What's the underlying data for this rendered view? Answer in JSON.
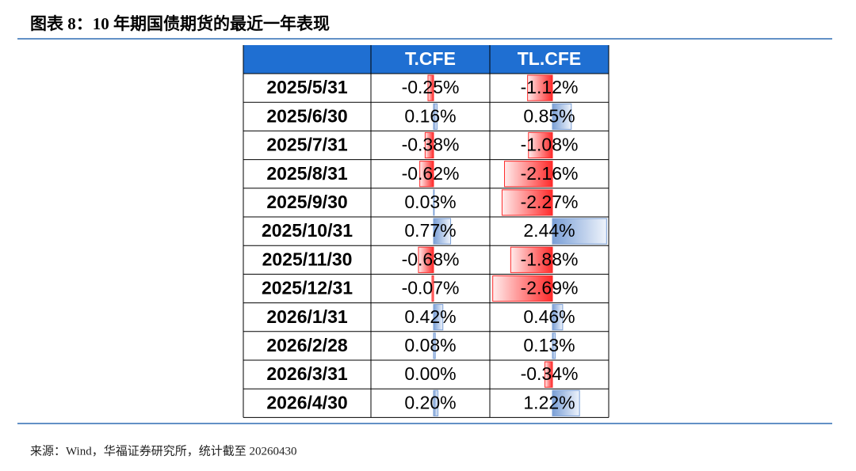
{
  "header": {
    "title": "图表 8：10 年期国债期货的最近一年表现"
  },
  "table": {
    "dates": [
      "2025/5/31",
      "2025/6/30",
      "2025/7/31",
      "2025/8/31",
      "2025/9/30",
      "2025/10/31",
      "2025/11/30",
      "2025/12/31",
      "2026/1/31",
      "2026/2/28",
      "2026/3/31",
      "2026/4/30"
    ],
    "columns": [
      {
        "name": "T.CFE",
        "values": [
          -0.25,
          0.16,
          -0.38,
          -0.62,
          0.03,
          0.77,
          -0.68,
          -0.07,
          0.42,
          0.08,
          0.0,
          0.2
        ],
        "value_labels": [
          "-0.25%",
          "0.16%",
          "-0.38%",
          "-0.62%",
          "0.03%",
          "0.77%",
          "-0.68%",
          "-0.07%",
          "0.42%",
          "0.08%",
          "0.00%",
          "0.20%"
        ]
      },
      {
        "name": "TL.CFE",
        "values": [
          -1.12,
          0.85,
          -1.08,
          -2.16,
          -2.27,
          2.44,
          -1.88,
          -2.69,
          0.46,
          0.13,
          -0.34,
          1.22
        ],
        "value_labels": [
          "-1.12%",
          "0.85%",
          "-1.08%",
          "-2.16%",
          "-2.27%",
          "2.44%",
          "-1.88%",
          "-2.69%",
          "0.46%",
          "0.13%",
          "-0.34%",
          "1.22%"
        ]
      }
    ]
  },
  "footer": {
    "source": "来源：Wind，华福证券研究所，统计截至 20260430"
  }
}
